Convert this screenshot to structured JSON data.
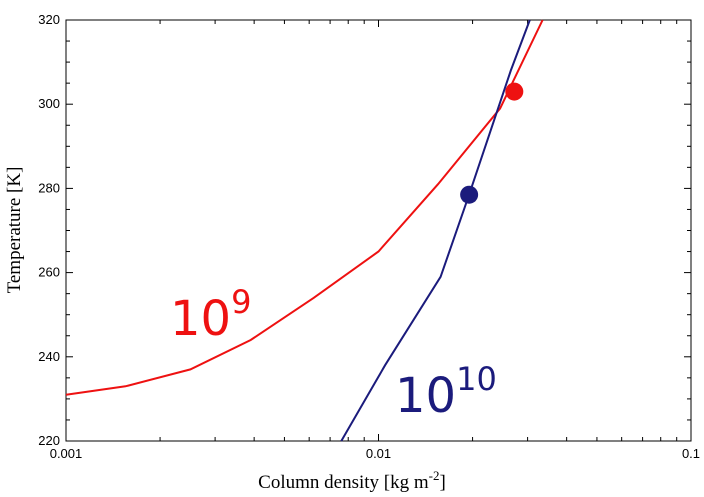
{
  "chart_data": {
    "type": "line",
    "xlabel": "Column density [kg m",
    "xlabel_sup": "-2",
    "xlabel_end": "]",
    "ylabel": "Temperature [K]",
    "xscale": "log",
    "xlim": [
      0.001,
      0.1
    ],
    "ylim": [
      220,
      320
    ],
    "x_ticks": [
      {
        "value": 0.001,
        "label": "0.001"
      },
      {
        "value": 0.01,
        "label": "0.01"
      },
      {
        "value": 0.1,
        "label": "0.1"
      }
    ],
    "y_ticks": [
      220,
      240,
      260,
      280,
      300,
      320
    ],
    "grid": false,
    "series": [
      {
        "label_base": "10",
        "label_exp": "9",
        "color": "#ee1111",
        "points": [
          [
            0.001,
            231
          ],
          [
            0.00155,
            233
          ],
          [
            0.0025,
            237
          ],
          [
            0.0039,
            244
          ],
          [
            0.0062,
            254
          ],
          [
            0.01,
            265
          ],
          [
            0.0155,
            281
          ],
          [
            0.0245,
            299
          ],
          [
            0.0335,
            320
          ]
        ],
        "marker": [
          0.0272,
          303
        ]
      },
      {
        "label_base": "10",
        "label_exp": "10",
        "color": "#1b1b7c",
        "points": [
          [
            0.0076,
            220
          ],
          [
            0.0105,
            238
          ],
          [
            0.0158,
            259
          ],
          [
            0.0195,
            278.5
          ],
          [
            0.0265,
            308
          ],
          [
            0.0305,
            320
          ]
        ],
        "marker": [
          0.0195,
          278.5
        ]
      }
    ]
  }
}
